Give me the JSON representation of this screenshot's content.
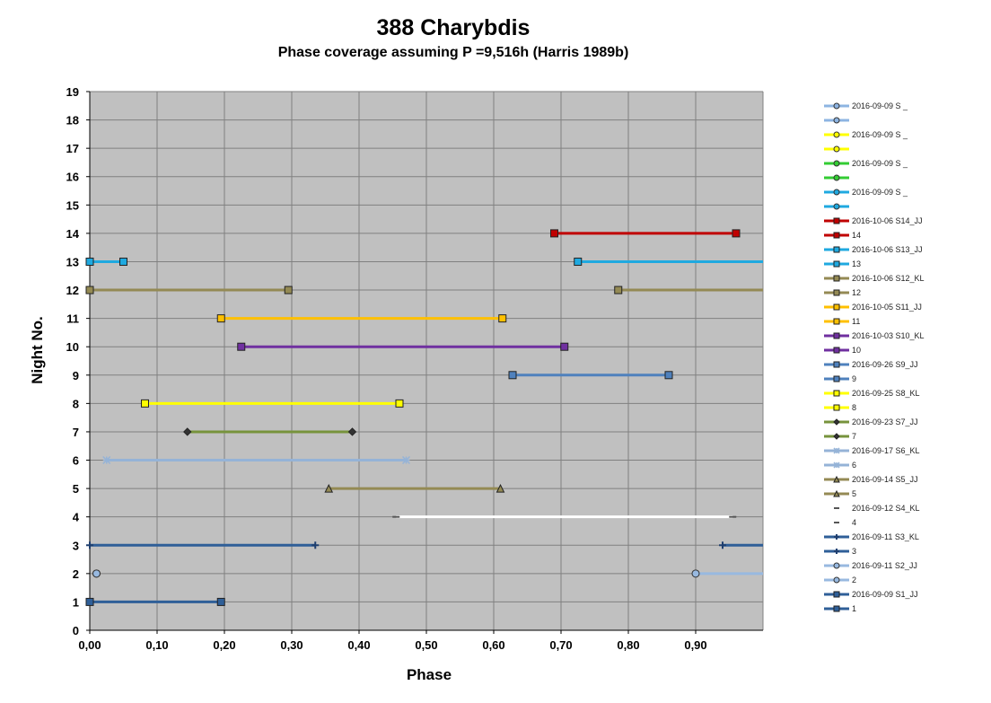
{
  "chart_data": {
    "type": "line",
    "title": "388 Charybdis",
    "subtitle": "Phase coverage assuming P =9,516h (Harris 1989b)",
    "xlabel": "Phase",
    "ylabel": "Night No.",
    "xlim": [
      0,
      1
    ],
    "ylim": [
      0,
      19
    ],
    "x_ticks": [
      "0,00",
      "0,10",
      "0,20",
      "0,30",
      "0,40",
      "0,50",
      "0,60",
      "0,70",
      "0,80",
      "0,90"
    ],
    "y_ticks": [
      "0",
      "1",
      "2",
      "3",
      "4",
      "5",
      "6",
      "7",
      "8",
      "9",
      "10",
      "11",
      "12",
      "13",
      "14",
      "15",
      "16",
      "17",
      "18",
      "19"
    ],
    "grid": true,
    "legend_position": "right",
    "series": [
      {
        "name": "2016-09-09  S1_JJ",
        "short": "1",
        "color": "#2f5f98",
        "marker": "square",
        "night": 1,
        "segments": [
          [
            0.0,
            0.195
          ]
        ]
      },
      {
        "name": "2016-09-11  S2_JJ",
        "short": "2",
        "color": "#98b9e0",
        "marker": "circle",
        "night": 2,
        "segments": [
          [
            0.01,
            0.01
          ],
          [
            0.9,
            1.0
          ]
        ]
      },
      {
        "name": "2016-09-11  S3_KL",
        "short": "3",
        "color": "#2f5f98",
        "marker": "plus",
        "night": 3,
        "segments": [
          [
            0.0,
            0.335
          ],
          [
            0.94,
            1.0
          ]
        ]
      },
      {
        "name": "2016-09-12  S4_KL",
        "short": "4",
        "color": "#ffffff",
        "marker": "dash",
        "night": 4,
        "segments": [
          [
            0.455,
            0.955
          ]
        ]
      },
      {
        "name": "2016-09-14  S5_JJ",
        "short": "5",
        "color": "#948a54",
        "marker": "triangle",
        "night": 5,
        "segments": [
          [
            0.355,
            0.61
          ]
        ]
      },
      {
        "name": "2016-09-17  S6_KL",
        "short": "6",
        "color": "#95b3d7",
        "marker": "star",
        "night": 6,
        "segments": [
          [
            0.025,
            0.47
          ]
        ]
      },
      {
        "name": "2016-09-23  S7_JJ",
        "short": "7",
        "color": "#77933c",
        "marker": "diamond",
        "night": 7,
        "segments": [
          [
            0.145,
            0.39
          ]
        ]
      },
      {
        "name": "2016-09-25  S8_KL",
        "short": "8",
        "color": "#ffff00",
        "marker": "square",
        "night": 8,
        "segments": [
          [
            0.082,
            0.46
          ]
        ]
      },
      {
        "name": "2016-09-26  S9_JJ",
        "short": "9",
        "color": "#4f81bd",
        "marker": "square",
        "night": 9,
        "segments": [
          [
            0.628,
            0.86
          ]
        ]
      },
      {
        "name": "2016-10-03  S10_KL",
        "short": "10",
        "color": "#7030a0",
        "marker": "square",
        "night": 10,
        "segments": [
          [
            0.225,
            0.705
          ]
        ]
      },
      {
        "name": "2016-10-05  S11_JJ",
        "short": "11",
        "color": "#ffc000",
        "marker": "square",
        "night": 11,
        "segments": [
          [
            0.195,
            0.613
          ]
        ]
      },
      {
        "name": "2016-10-06  S12_KL",
        "short": "12",
        "color": "#948a54",
        "marker": "square",
        "night": 12,
        "segments": [
          [
            0.0,
            0.295
          ],
          [
            0.785,
            1.0
          ]
        ]
      },
      {
        "name": "2016-10-06  S13_JJ",
        "short": "13",
        "color": "#1fa9e0",
        "marker": "square",
        "night": 13,
        "segments": [
          [
            0.0,
            0.05
          ],
          [
            0.725,
            1.0
          ]
        ]
      },
      {
        "name": "2016-10-06  S14_JJ",
        "short": "14",
        "color": "#c00000",
        "marker": "square",
        "night": 14,
        "segments": [
          [
            0.69,
            0.96
          ]
        ]
      },
      {
        "name": "2016-09-09  S _",
        "short": "",
        "color": "#8db4e2",
        "marker": "circle",
        "night": null,
        "segments": []
      },
      {
        "name": "2016-09-09  S _",
        "short": "",
        "color": "#ffff00",
        "marker": "circle",
        "night": null,
        "segments": []
      },
      {
        "name": "2016-09-09  S _",
        "short": "",
        "color": "#33cc33",
        "marker": "circle",
        "night": null,
        "segments": []
      },
      {
        "name": "2016-09-09  S _",
        "short": "",
        "color": "#1fa9e0",
        "marker": "circle",
        "night": null,
        "segments": []
      }
    ]
  }
}
